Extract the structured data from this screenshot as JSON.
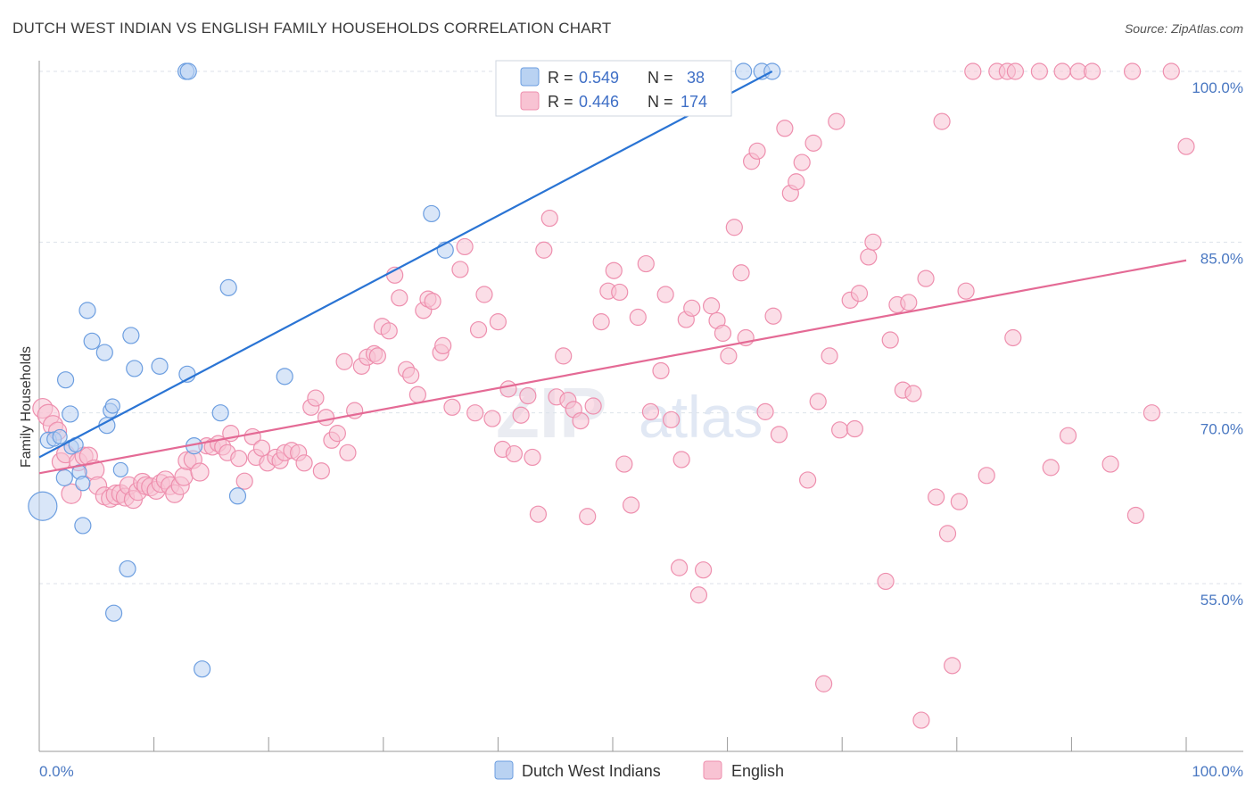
{
  "title": "DUTCH WEST INDIAN VS ENGLISH FAMILY HOUSEHOLDS CORRELATION CHART",
  "source": "Source: ZipAtlas.com",
  "watermark": {
    "zip": "ZIP",
    "atlas": "atlas"
  },
  "colors": {
    "blue_fill": "#b9d2f2",
    "blue_stroke": "#6c9ee0",
    "blue_line": "#2a74d4",
    "pink_fill": "#f8c3d3",
    "pink_stroke": "#ee8fae",
    "pink_line": "#e46a95",
    "grid": "#dde2ea",
    "axis": "#999999"
  },
  "legend": {
    "rows": [
      {
        "r_label": "R = ",
        "r_value": "0.549",
        "n_label": "N = ",
        "n_value": "38"
      },
      {
        "r_label": "R = ",
        "r_value": "0.446",
        "n_label": "N = ",
        "n_value": "174"
      }
    ]
  },
  "chart_data": {
    "type": "scatter",
    "title": "DUTCH WEST INDIAN VS ENGLISH FAMILY HOUSEHOLDS CORRELATION CHART",
    "xlabel": "",
    "ylabel": "Family Households",
    "xlim": [
      0,
      100
    ],
    "ylim": [
      40,
      103
    ],
    "x_tick_labels": [
      "0.0%",
      "100.0%"
    ],
    "y_ticks": [
      55,
      70,
      85,
      100
    ],
    "y_tick_labels": [
      "55.0%",
      "70.0%",
      "85.0%",
      "100.0%"
    ],
    "series": [
      {
        "name": "Dutch West Indians",
        "r": 0.549,
        "n": 38,
        "trend": {
          "x1": 0,
          "y1": 66.1,
          "x2": 63.9,
          "y2": 100.0
        },
        "points": [
          [
            0.3,
            61.8,
            16
          ],
          [
            0.8,
            67.6,
            9
          ],
          [
            1.3,
            67.7,
            8
          ],
          [
            1.8,
            67.9,
            8
          ],
          [
            2.2,
            64.3,
            9
          ],
          [
            2.3,
            72.9,
            9
          ],
          [
            2.7,
            69.9,
            9
          ],
          [
            2.8,
            67.0,
            8
          ],
          [
            3.2,
            67.2,
            8
          ],
          [
            3.5,
            64.8,
            8
          ],
          [
            3.8,
            63.8,
            8
          ],
          [
            3.8,
            60.1,
            9
          ],
          [
            4.2,
            79.0,
            9
          ],
          [
            4.6,
            76.3,
            9
          ],
          [
            5.7,
            75.3,
            9
          ],
          [
            5.9,
            68.9,
            9
          ],
          [
            6.2,
            70.2,
            8
          ],
          [
            6.4,
            70.6,
            8
          ],
          [
            6.5,
            52.4,
            9
          ],
          [
            7.1,
            65.0,
            8
          ],
          [
            7.7,
            56.3,
            9
          ],
          [
            8.0,
            76.8,
            9
          ],
          [
            8.3,
            73.9,
            9
          ],
          [
            10.5,
            74.1,
            9
          ],
          [
            12.8,
            100.0,
            9
          ],
          [
            13.0,
            100.0,
            9
          ],
          [
            12.9,
            73.4,
            9
          ],
          [
            13.5,
            67.1,
            9
          ],
          [
            14.2,
            47.5,
            9
          ],
          [
            15.8,
            70.0,
            9
          ],
          [
            16.5,
            81.0,
            9
          ],
          [
            17.3,
            62.7,
            9
          ],
          [
            21.4,
            73.2,
            9
          ],
          [
            34.2,
            87.5,
            9
          ],
          [
            35.4,
            84.3,
            9
          ],
          [
            61.4,
            100.0,
            9
          ],
          [
            63.0,
            100.0,
            9
          ],
          [
            63.9,
            100.0,
            9
          ]
        ]
      },
      {
        "name": "English",
        "r": 0.446,
        "n": 174,
        "trend": {
          "x1": 0,
          "y1": 64.7,
          "x2": 100,
          "y2": 83.4
        },
        "points": [
          [
            0.3,
            70.4,
            11
          ],
          [
            0.8,
            69.8,
            12
          ],
          [
            1.2,
            68.9,
            11
          ],
          [
            1.6,
            68.4,
            10
          ],
          [
            1.9,
            65.7,
            10
          ],
          [
            2.3,
            66.4,
            10
          ],
          [
            2.8,
            62.9,
            11
          ],
          [
            3.4,
            65.7,
            10
          ],
          [
            3.9,
            66.2,
            10
          ],
          [
            4.3,
            66.2,
            10
          ],
          [
            4.8,
            65.0,
            11
          ],
          [
            5.1,
            63.6,
            10
          ],
          [
            5.7,
            62.7,
            10
          ],
          [
            6.2,
            62.5,
            10
          ],
          [
            6.7,
            62.8,
            11
          ],
          [
            7.1,
            62.9,
            10
          ],
          [
            7.5,
            62.6,
            10
          ],
          [
            7.8,
            63.6,
            10
          ],
          [
            8.2,
            62.4,
            10
          ],
          [
            8.6,
            63.1,
            10
          ],
          [
            9.0,
            63.9,
            10
          ],
          [
            9.3,
            63.6,
            10
          ],
          [
            9.7,
            63.5,
            10
          ],
          [
            10.2,
            63.2,
            10
          ],
          [
            10.6,
            63.8,
            10
          ],
          [
            11.0,
            64.1,
            10
          ],
          [
            11.4,
            63.6,
            10
          ],
          [
            11.8,
            62.9,
            10
          ],
          [
            12.3,
            63.6,
            10
          ],
          [
            12.6,
            64.4,
            10
          ],
          [
            12.9,
            65.8,
            10
          ],
          [
            13.4,
            65.9,
            10
          ],
          [
            14.0,
            64.8,
            10
          ],
          [
            14.6,
            67.1,
            9
          ],
          [
            15.1,
            67.0,
            9
          ],
          [
            15.6,
            67.3,
            9
          ],
          [
            16.0,
            67.0,
            9
          ],
          [
            16.4,
            66.5,
            9
          ],
          [
            16.7,
            68.2,
            9
          ],
          [
            17.4,
            66.0,
            9
          ],
          [
            17.9,
            64.0,
            9
          ],
          [
            18.6,
            67.9,
            9
          ],
          [
            18.9,
            66.1,
            9
          ],
          [
            19.4,
            66.9,
            9
          ],
          [
            19.9,
            65.6,
            9
          ],
          [
            20.6,
            66.1,
            9
          ],
          [
            21.0,
            65.8,
            9
          ],
          [
            21.4,
            66.5,
            9
          ],
          [
            22.0,
            66.7,
            9
          ],
          [
            22.6,
            66.5,
            9
          ],
          [
            23.1,
            65.6,
            9
          ],
          [
            23.7,
            70.5,
            9
          ],
          [
            24.1,
            71.3,
            9
          ],
          [
            24.6,
            64.9,
            9
          ],
          [
            25.0,
            69.6,
            9
          ],
          [
            25.5,
            67.6,
            9
          ],
          [
            26.0,
            68.2,
            9
          ],
          [
            26.6,
            74.5,
            9
          ],
          [
            26.9,
            66.5,
            9
          ],
          [
            27.5,
            70.2,
            9
          ],
          [
            28.1,
            74.1,
            9
          ],
          [
            28.6,
            74.9,
            9
          ],
          [
            29.2,
            75.2,
            9
          ],
          [
            29.5,
            75.0,
            9
          ],
          [
            29.9,
            77.6,
            9
          ],
          [
            30.5,
            77.2,
            9
          ],
          [
            31.0,
            82.1,
            9
          ],
          [
            31.4,
            80.1,
            9
          ],
          [
            32.0,
            73.8,
            9
          ],
          [
            32.4,
            73.3,
            9
          ],
          [
            33.0,
            71.6,
            9
          ],
          [
            33.5,
            79.0,
            9
          ],
          [
            33.9,
            80.0,
            9
          ],
          [
            34.3,
            79.8,
            9
          ],
          [
            35.0,
            75.3,
            9
          ],
          [
            35.2,
            75.9,
            9
          ],
          [
            36.0,
            70.5,
            9
          ],
          [
            36.7,
            82.6,
            9
          ],
          [
            37.1,
            84.6,
            9
          ],
          [
            38.0,
            70.0,
            9
          ],
          [
            38.3,
            77.3,
            9
          ],
          [
            38.8,
            80.4,
            9
          ],
          [
            39.5,
            69.5,
            9
          ],
          [
            40.0,
            78.0,
            9
          ],
          [
            40.4,
            66.8,
            9
          ],
          [
            40.9,
            72.1,
            9
          ],
          [
            41.4,
            66.4,
            9
          ],
          [
            42.0,
            69.8,
            9
          ],
          [
            42.6,
            71.5,
            9
          ],
          [
            43.0,
            66.1,
            9
          ],
          [
            43.5,
            61.1,
            9
          ],
          [
            44.0,
            84.3,
            9
          ],
          [
            44.5,
            87.1,
            9
          ],
          [
            45.1,
            71.4,
            9
          ],
          [
            45.7,
            75.0,
            9
          ],
          [
            46.1,
            71.1,
            9
          ],
          [
            46.6,
            70.3,
            9
          ],
          [
            47.2,
            69.3,
            9
          ],
          [
            47.8,
            60.9,
            9
          ],
          [
            48.3,
            70.6,
            9
          ],
          [
            49.0,
            78.0,
            9
          ],
          [
            49.6,
            80.7,
            9
          ],
          [
            50.1,
            82.5,
            9
          ],
          [
            50.6,
            80.6,
            9
          ],
          [
            51.0,
            65.5,
            9
          ],
          [
            51.6,
            61.9,
            9
          ],
          [
            52.2,
            78.4,
            9
          ],
          [
            52.9,
            83.1,
            9
          ],
          [
            53.3,
            70.1,
            9
          ],
          [
            54.2,
            73.7,
            9
          ],
          [
            54.6,
            80.4,
            9
          ],
          [
            55.1,
            69.4,
            9
          ],
          [
            55.8,
            56.4,
            9
          ],
          [
            56.0,
            65.9,
            9
          ],
          [
            56.4,
            78.2,
            9
          ],
          [
            56.9,
            79.2,
            9
          ],
          [
            57.5,
            54.0,
            9
          ],
          [
            57.9,
            56.2,
            9
          ],
          [
            58.6,
            79.4,
            9
          ],
          [
            59.1,
            78.1,
            9
          ],
          [
            59.6,
            77.0,
            9
          ],
          [
            60.1,
            75.0,
            9
          ],
          [
            60.6,
            86.3,
            9
          ],
          [
            61.2,
            82.3,
            9
          ],
          [
            61.6,
            76.6,
            9
          ],
          [
            62.1,
            92.1,
            9
          ],
          [
            62.6,
            93.0,
            9
          ],
          [
            63.3,
            70.1,
            9
          ],
          [
            64.0,
            78.5,
            9
          ],
          [
            64.5,
            68.1,
            9
          ],
          [
            65.0,
            95.0,
            9
          ],
          [
            65.5,
            89.3,
            9
          ],
          [
            66.0,
            90.3,
            9
          ],
          [
            66.5,
            92.0,
            9
          ],
          [
            67.0,
            64.1,
            9
          ],
          [
            67.5,
            93.7,
            9
          ],
          [
            67.9,
            71.0,
            9
          ],
          [
            68.4,
            46.2,
            9
          ],
          [
            68.9,
            75.0,
            9
          ],
          [
            69.5,
            95.6,
            9
          ],
          [
            69.8,
            68.5,
            9
          ],
          [
            70.7,
            79.9,
            9
          ],
          [
            71.1,
            68.6,
            9
          ],
          [
            71.5,
            80.5,
            9
          ],
          [
            72.3,
            83.7,
            9
          ],
          [
            72.7,
            85.0,
            9
          ],
          [
            73.8,
            55.2,
            9
          ],
          [
            74.2,
            76.4,
            9
          ],
          [
            74.8,
            79.5,
            9
          ],
          [
            75.3,
            72.0,
            9
          ],
          [
            75.8,
            79.7,
            9
          ],
          [
            76.2,
            71.7,
            9
          ],
          [
            76.9,
            43.0,
            9
          ],
          [
            77.3,
            81.8,
            9
          ],
          [
            78.2,
            62.6,
            9
          ],
          [
            78.7,
            95.6,
            9
          ],
          [
            79.2,
            59.4,
            9
          ],
          [
            79.6,
            47.8,
            9
          ],
          [
            80.2,
            62.2,
            9
          ],
          [
            80.8,
            80.7,
            9
          ],
          [
            81.4,
            100.0,
            9
          ],
          [
            82.6,
            64.5,
            9
          ],
          [
            83.5,
            100.0,
            9
          ],
          [
            84.4,
            100.0,
            9
          ],
          [
            84.9,
            76.6,
            9
          ],
          [
            85.1,
            100.0,
            9
          ],
          [
            87.2,
            100.0,
            9
          ],
          [
            88.2,
            65.2,
            9
          ],
          [
            89.2,
            100.0,
            9
          ],
          [
            89.7,
            68.0,
            9
          ],
          [
            90.6,
            100.0,
            9
          ],
          [
            91.8,
            100.0,
            9
          ],
          [
            93.4,
            65.5,
            9
          ],
          [
            95.3,
            100.0,
            9
          ],
          [
            95.6,
            61.0,
            9
          ],
          [
            97.0,
            70.0,
            9
          ],
          [
            98.7,
            100.0,
            9
          ],
          [
            100.0,
            93.4,
            9
          ]
        ]
      }
    ],
    "bottom_legend": [
      "Dutch West Indians",
      "English"
    ]
  }
}
